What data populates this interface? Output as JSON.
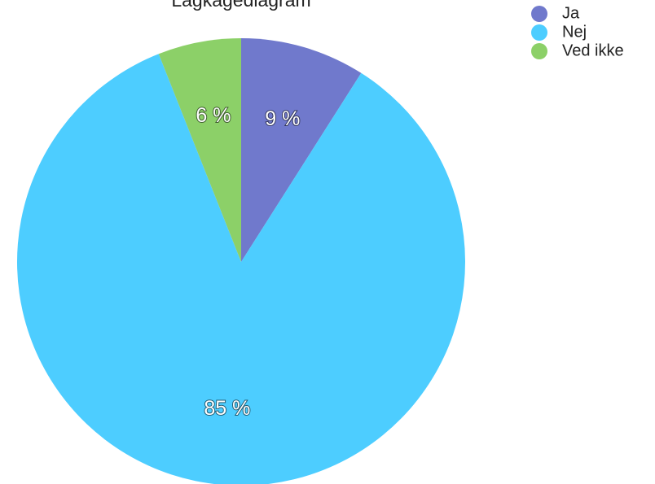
{
  "chart_data": {
    "type": "pie",
    "title": "Lagkagediagram",
    "categories": [
      "Ja",
      "Nej",
      "Ved ikke"
    ],
    "values": [
      9,
      85,
      6
    ],
    "value_labels": [
      "9 %",
      "85 %",
      "6 %"
    ],
    "colors": [
      "#7079cc",
      "#4dcdff",
      "#8cd068"
    ]
  }
}
